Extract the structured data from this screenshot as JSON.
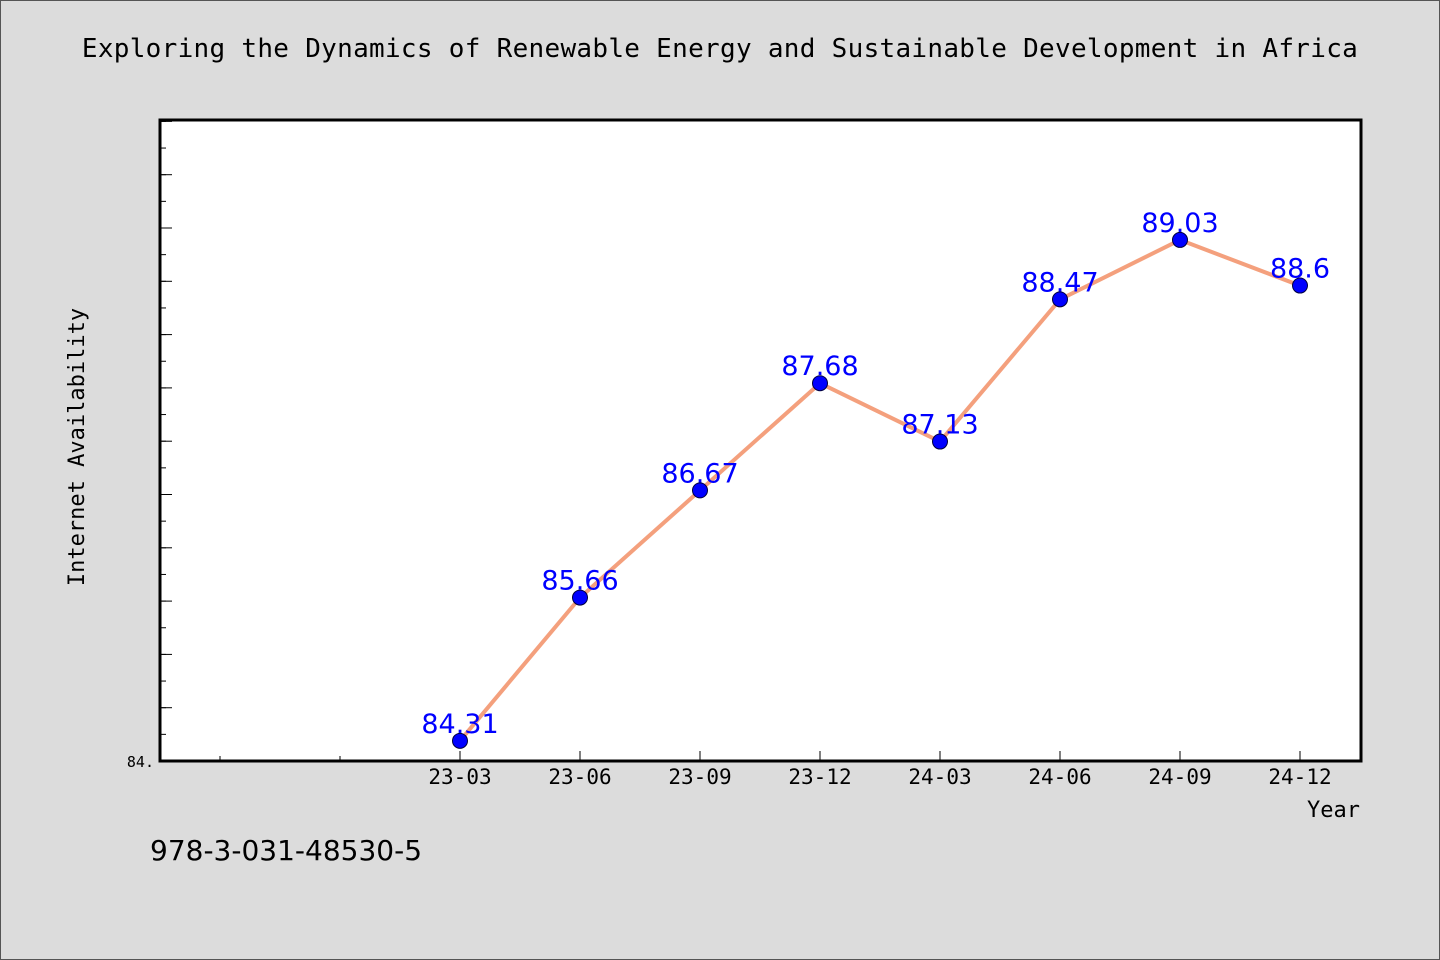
{
  "chart_data": {
    "type": "line",
    "title": "Exploring the Dynamics of Renewable Energy and Sustainable Development in Africa",
    "xlabel": "Year",
    "ylabel": "Internet Availability",
    "categories": [
      "23-03",
      "23-06",
      "23-09",
      "23-12",
      "24-03",
      "24-06",
      "24-09",
      "24-12"
    ],
    "series": [
      {
        "values": [
          84.31,
          85.66,
          86.67,
          87.68,
          87.13,
          88.47,
          89.03,
          88.6
        ]
      }
    ],
    "data_labels": [
      "84.31",
      "85.66",
      "86.67",
      "87.68",
      "87.13",
      "88.47",
      "89.03",
      "88.6"
    ],
    "ylim": [
      84.12,
      90.16
    ],
    "y_tick_label": "84.",
    "grid": false,
    "legend": "none",
    "colors": {
      "line": "#f4a07d",
      "marker": "#0000ff",
      "label": "#0000ff",
      "page_background": "#dcdcdc",
      "plot_background": "#ffffff"
    }
  },
  "footer": {
    "code": "978-3-031-48530-5"
  }
}
